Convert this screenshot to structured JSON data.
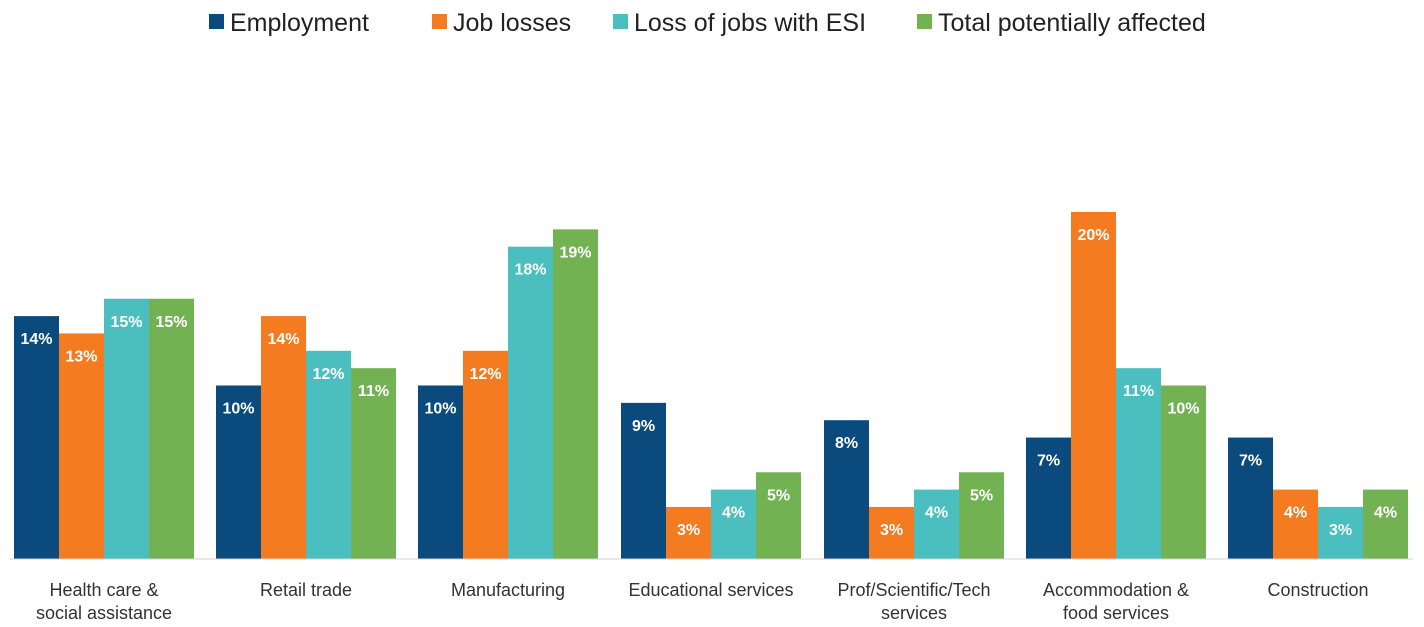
{
  "chart_data": {
    "type": "bar",
    "title": "",
    "xlabel": "",
    "ylabel": "",
    "ylim": [
      0,
      20
    ],
    "grid": false,
    "legend_position": "top",
    "categories": [
      [
        "Health care &",
        "social assistance"
      ],
      [
        "Retail trade"
      ],
      [
        "Manufacturing"
      ],
      [
        "Educational services"
      ],
      [
        "Prof/Scientific/Tech",
        "services"
      ],
      [
        "Accommodation &",
        "food services"
      ],
      [
        "Construction"
      ]
    ],
    "series": [
      {
        "name": "Employment",
        "color": "#0a4a7c",
        "values": [
          14,
          10,
          10,
          9,
          8,
          7,
          7
        ]
      },
      {
        "name": "Job losses",
        "color": "#f47b20",
        "values": [
          13,
          14,
          12,
          3,
          3,
          20,
          4
        ]
      },
      {
        "name": "Loss of jobs with ESI",
        "color": "#4bbfbf",
        "values": [
          15,
          12,
          18,
          4,
          4,
          11,
          3
        ]
      },
      {
        "name": "Total potentially affected",
        "color": "#72b253",
        "values": [
          15,
          11,
          19,
          5,
          5,
          10,
          4
        ]
      }
    ],
    "data_labels": [
      [
        "14%",
        "10%",
        "10%",
        "9%",
        "8%",
        "7%",
        "7%"
      ],
      [
        "13%",
        "14%",
        "12%",
        "3%",
        "3%",
        "20%",
        "4%"
      ],
      [
        "15%",
        "12%",
        "18%",
        "4%",
        "4%",
        "11%",
        "3%"
      ],
      [
        "15%",
        "11%",
        "19%",
        "5%",
        "5%",
        "10%",
        "4%"
      ]
    ]
  }
}
